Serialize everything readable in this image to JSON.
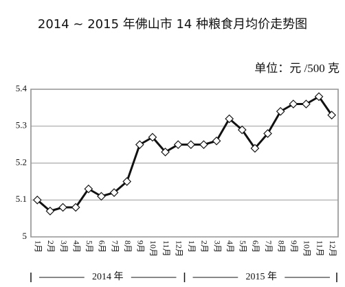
{
  "chart_data": {
    "type": "line",
    "title": "2014 ~ 2015 年佛山市 14 种粮食月均价走势图",
    "unit": "单位：元 /500 克",
    "categories": [
      "1月",
      "2月",
      "3月",
      "4月",
      "5月",
      "6月",
      "7月",
      "8月",
      "9月",
      "10月",
      "11月",
      "12月",
      "1月",
      "2月",
      "3月",
      "4月",
      "5月",
      "6月",
      "7月",
      "8月",
      "9月",
      "10月",
      "11月",
      "12月"
    ],
    "x_groups": [
      "2014 年",
      "2015 年"
    ],
    "values": [
      5.1,
      5.07,
      5.08,
      5.08,
      5.13,
      5.11,
      5.12,
      5.15,
      5.25,
      5.27,
      5.23,
      5.25,
      5.25,
      5.25,
      5.26,
      5.32,
      5.29,
      5.24,
      5.28,
      5.34,
      5.36,
      5.36,
      5.38,
      5.33
    ],
    "color": "#111111",
    "ylim": [
      5,
      5.4
    ],
    "yticks": [
      5,
      5.1,
      5.2,
      5.3,
      5.4
    ],
    "grid": true
  }
}
